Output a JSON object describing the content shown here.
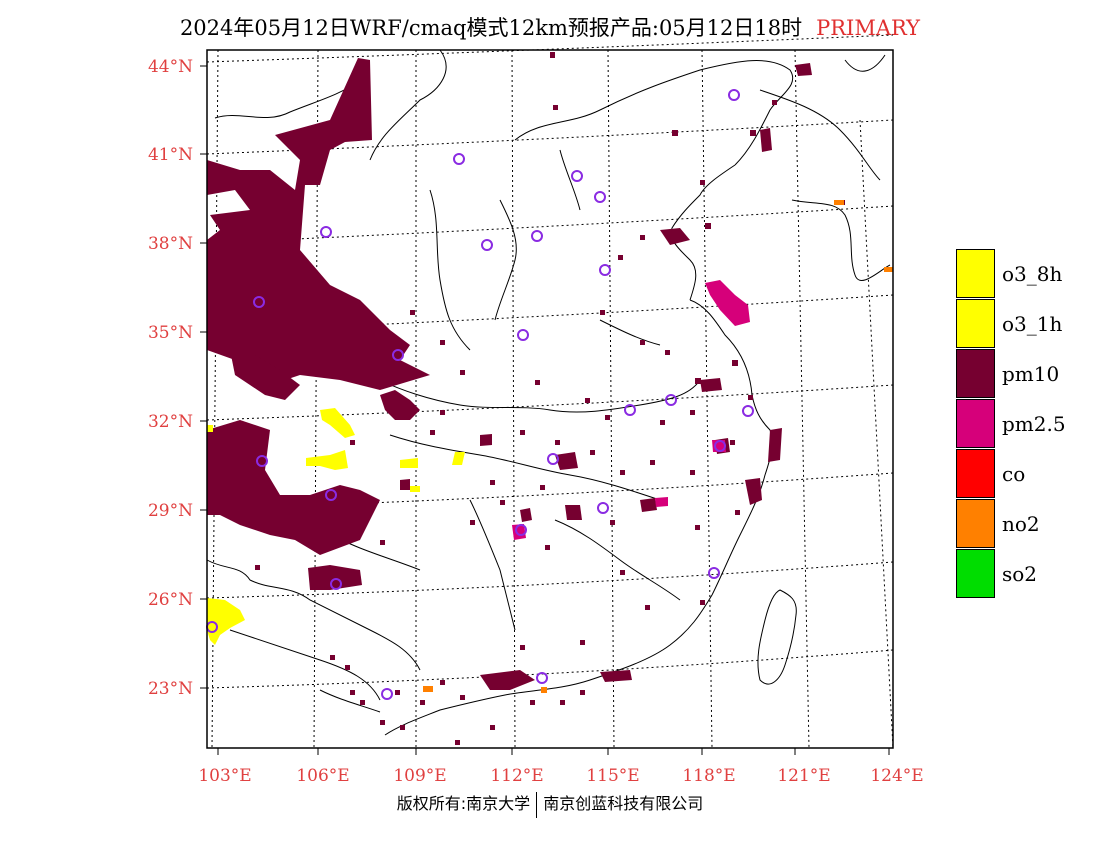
{
  "header": {
    "title": "2024年05月12日WRF/cmaq模式12km预报产品:05月12日18时",
    "tag": "PRIMARY"
  },
  "axes": {
    "lat_labels": [
      "44°N",
      "41°N",
      "38°N",
      "35°N",
      "32°N",
      "29°N",
      "26°N",
      "23°N"
    ],
    "lon_labels": [
      "103°E",
      "106°E",
      "109°E",
      "112°E",
      "115°E",
      "118°E",
      "121°E",
      "124°E"
    ],
    "lat_values": [
      44,
      41,
      38,
      35,
      32,
      29,
      26,
      23
    ],
    "lon_values": [
      103,
      106,
      109,
      112,
      115,
      118,
      121,
      124
    ],
    "color": "#e04040"
  },
  "legend": {
    "items": [
      {
        "label": "o3_8h",
        "color": "#ffff00"
      },
      {
        "label": "o3_1h",
        "color": "#ffff00"
      },
      {
        "label": "pm10",
        "color": "#760030"
      },
      {
        "label": "pm2.5",
        "color": "#d6007a"
      },
      {
        "label": "co",
        "color": "#ff0000"
      },
      {
        "label": "no2",
        "color": "#ff8000"
      },
      {
        "label": "so2",
        "color": "#00dd00"
      }
    ]
  },
  "colors": {
    "pm10": "#760030",
    "pm25": "#d6007a",
    "o3": "#ffff00",
    "no2": "#ff8000",
    "station": "#8a2be2"
  },
  "footer": {
    "left": "版权所有:南京大学",
    "right": "南京创蓝科技有限公司"
  }
}
